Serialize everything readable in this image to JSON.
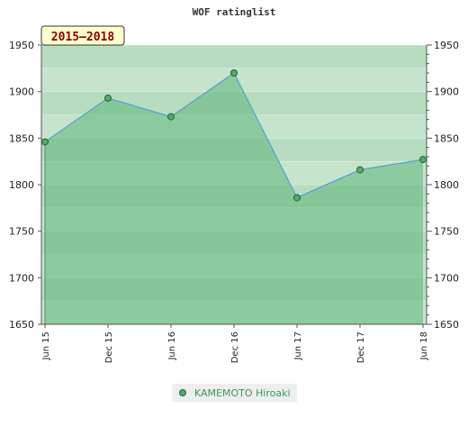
{
  "chart_data": {
    "type": "area",
    "title": "WOF ratinglist",
    "badge": "2015–2018",
    "x": [
      "Jun 15",
      "Dec 15",
      "Jun 16",
      "Dec 16",
      "Jun 17",
      "Dec 17",
      "Jun 18"
    ],
    "series": [
      {
        "name": "KAMEMOTO Hiroaki",
        "values": [
          1846,
          1893,
          1873,
          1920,
          1786,
          1816,
          1827
        ]
      }
    ],
    "ylim": [
      1650,
      1950
    ],
    "y_ticks": [
      1650,
      1700,
      1750,
      1800,
      1850,
      1900,
      1950
    ],
    "grid": true,
    "legend_position": "bottom",
    "colors": {
      "line": "#5b9bd5",
      "marker": "#4caf6a",
      "fill": "#5cb57a",
      "badge_bg": "#ffffcc"
    }
  }
}
